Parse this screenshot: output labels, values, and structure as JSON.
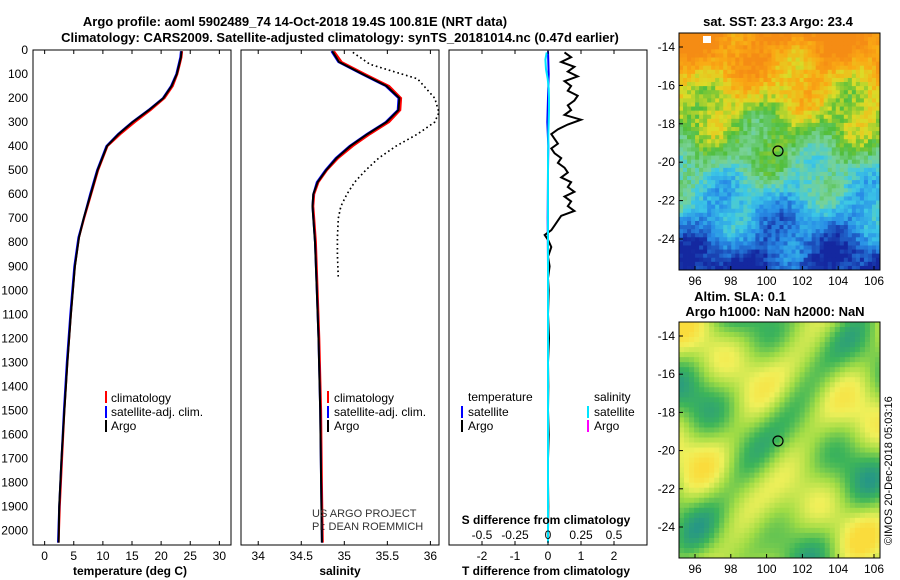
{
  "header": {
    "line1": "Argo profile: aoml 5902489_74 14-Oct-2018 19.4S 100.81E (NRT data)",
    "line2": "Climatology: CARS2009. Satellite-adjusted climatology: synTS_20181014.nc (0.47d earlier)"
  },
  "colors": {
    "climatology": "#ff0000",
    "satellite": "#0000ff",
    "argo": "#000000",
    "satellite_s": "#00e5ff",
    "argo_s": "#ff00ff"
  },
  "depth_axis": {
    "ticks": [
      0,
      100,
      200,
      300,
      400,
      500,
      600,
      700,
      800,
      900,
      1000,
      1100,
      1200,
      1300,
      1400,
      1500,
      1600,
      1700,
      1800,
      1900,
      2000
    ],
    "range": [
      0,
      2060
    ]
  },
  "chart_data": [
    {
      "type": "line",
      "name": "temperature",
      "xlabel": "temperature (deg C)",
      "xlim": [
        -2,
        32
      ],
      "xticks": [
        0,
        5,
        10,
        15,
        20,
        25,
        30
      ],
      "legend": [
        "climatology",
        "satellite-adj. clim.",
        "Argo"
      ],
      "series": [
        {
          "name": "climatology",
          "depth": [
            5,
            30,
            60,
            100,
            150,
            200,
            250,
            300,
            350,
            400,
            500,
            600,
            700,
            780,
            900,
            1100,
            1300,
            1500,
            1700,
            1900,
            2050
          ],
          "values": [
            23.6,
            23.5,
            23.2,
            22.8,
            22.0,
            20.6,
            18.2,
            15.5,
            13.0,
            10.8,
            9.2,
            8.0,
            6.8,
            5.9,
            5.2,
            4.5,
            3.9,
            3.4,
            3.0,
            2.6,
            2.4
          ]
        },
        {
          "name": "satellite-adj. clim.",
          "depth": [
            5,
            30,
            60,
            100,
            150,
            200,
            250,
            300,
            350,
            400,
            500,
            600,
            700,
            780,
            900,
            1100,
            1300,
            1500,
            1700,
            1900,
            2050
          ],
          "values": [
            23.4,
            23.3,
            23.0,
            22.6,
            21.7,
            20.3,
            17.8,
            15.0,
            12.6,
            10.6,
            9.0,
            7.8,
            6.7,
            5.8,
            5.1,
            4.4,
            3.8,
            3.3,
            2.9,
            2.5,
            2.3
          ]
        },
        {
          "name": "Argo",
          "depth": [
            5,
            30,
            60,
            100,
            150,
            200,
            250,
            300,
            350,
            400,
            500,
            600,
            700,
            780,
            900,
            1100,
            1300,
            1500,
            1700,
            1900,
            2050
          ],
          "values": [
            23.5,
            23.4,
            23.1,
            22.7,
            21.8,
            20.4,
            17.9,
            15.1,
            12.7,
            10.7,
            9.1,
            7.9,
            6.7,
            5.9,
            5.2,
            4.5,
            3.9,
            3.4,
            2.9,
            2.5,
            2.4
          ]
        }
      ]
    },
    {
      "type": "line",
      "name": "salinity",
      "xlabel": "salinity",
      "xlim": [
        33.8,
        36.1
      ],
      "xticks": [
        34,
        34.5,
        35,
        35.5,
        36
      ],
      "xticklabels": [
        "34",
        "34.5",
        "35",
        "35.5",
        "36"
      ],
      "legend": [
        "climatology",
        "satellite-adj. clim.",
        "Argo"
      ],
      "annotation": [
        "US ARGO PROJECT",
        "PI: DEAN ROEMMICH"
      ],
      "series": [
        {
          "name": "climatology",
          "depth": [
            5,
            50,
            100,
            150,
            200,
            250,
            300,
            350,
            400,
            450,
            500,
            550,
            600,
            650,
            700,
            800,
            1000,
            1200,
            1500,
            1800,
            2050
          ],
          "values": [
            34.88,
            34.97,
            35.24,
            35.52,
            35.66,
            35.65,
            35.52,
            35.3,
            35.1,
            34.93,
            34.8,
            34.7,
            34.65,
            34.64,
            34.65,
            34.67,
            34.69,
            34.71,
            34.73,
            34.74,
            34.75
          ]
        },
        {
          "name": "satellite-adj. clim.",
          "depth": [
            5,
            50,
            100,
            150,
            200,
            250,
            300,
            350,
            400,
            450,
            500,
            550,
            600,
            650,
            700,
            800,
            1000,
            1200,
            1500,
            1800,
            2050
          ],
          "values": [
            34.85,
            34.93,
            35.2,
            35.48,
            35.63,
            35.62,
            35.48,
            35.26,
            35.06,
            34.9,
            34.78,
            34.68,
            34.64,
            34.63,
            34.64,
            34.66,
            34.68,
            34.7,
            34.72,
            34.73,
            34.74
          ]
        },
        {
          "name": "Argo",
          "depth": [
            5,
            50,
            100,
            150,
            200,
            250,
            300,
            350,
            400,
            450,
            500,
            550,
            600,
            650,
            700,
            800,
            1000,
            1200,
            1500,
            1800,
            2050
          ],
          "values": [
            34.86,
            34.94,
            35.21,
            35.49,
            35.64,
            35.63,
            35.49,
            35.27,
            35.07,
            34.91,
            34.79,
            34.69,
            34.64,
            34.63,
            34.64,
            34.66,
            34.68,
            34.7,
            34.72,
            34.73,
            34.74
          ]
        },
        {
          "name": "clim. std",
          "style": "dotted",
          "depth": [
            10,
            60,
            120,
            200,
            260,
            300,
            350,
            400,
            450,
            500,
            550,
            600,
            650,
            700,
            780,
            850,
            950
          ],
          "values": [
            35.1,
            35.3,
            35.85,
            36.05,
            36.1,
            36.05,
            35.85,
            35.6,
            35.4,
            35.25,
            35.12,
            35.03,
            34.96,
            34.93,
            34.92,
            34.92,
            34.93
          ]
        },
        {
          "name": "clim. std",
          "style": "dotted",
          "depth": [
            10,
            60,
            120,
            200,
            260,
            300,
            350,
            400,
            450,
            500,
            550,
            600,
            650,
            700,
            780,
            850,
            950
          ],
          "values": [
            35.1,
            35.3,
            35.85,
            36.05,
            36.1,
            36.05,
            35.85,
            35.6,
            35.4,
            35.25,
            35.12,
            35.03,
            34.96,
            34.93,
            34.92,
            34.92,
            34.93
          ]
        }
      ]
    },
    {
      "type": "line",
      "name": "differences",
      "xlabel": "T difference from climatology",
      "xlim": [
        -3,
        3
      ],
      "xticks": [
        -2,
        -1,
        0,
        1,
        2
      ],
      "top_label": "S difference from climatology",
      "top_ticks": [
        "-0.5",
        "-0.25",
        "0",
        "0.25",
        "0.5"
      ],
      "legend_left": [
        "temperature",
        "satellite",
        "Argo"
      ],
      "legend_right": [
        "salinity",
        "satellite",
        "Argo"
      ],
      "series": [
        {
          "name": "T satellite",
          "depth": [
            5,
            100,
            200,
            300,
            400,
            500,
            700,
            900,
            1200,
            1500,
            1800,
            2050
          ],
          "values": [
            0.0,
            0.02,
            0.0,
            -0.02,
            0.01,
            0.0,
            -0.01,
            0.0,
            0.0,
            0.0,
            0.0,
            0.0
          ]
        },
        {
          "name": "T Argo",
          "depth": [
            10,
            30,
            50,
            70,
            90,
            110,
            130,
            150,
            170,
            190,
            210,
            230,
            250,
            270,
            290,
            310,
            330,
            350,
            370,
            390,
            410,
            430,
            450,
            470,
            490,
            510,
            530,
            550,
            570,
            590,
            610,
            630,
            650,
            670,
            690,
            710,
            730,
            750,
            770,
            790,
            820,
            860,
            900,
            950,
            1000,
            1100,
            1200,
            1300,
            1400,
            1500,
            1600,
            1700,
            1800,
            1900,
            2000,
            2050
          ],
          "values": [
            0.5,
            0.7,
            0.4,
            0.8,
            0.6,
            0.9,
            0.5,
            0.7,
            0.6,
            0.9,
            0.8,
            0.6,
            0.7,
            0.5,
            1.0,
            0.6,
            0.3,
            0.1,
            0.2,
            0.3,
            0.1,
            0.2,
            0.4,
            0.3,
            0.5,
            0.6,
            0.4,
            0.7,
            0.6,
            0.8,
            0.5,
            0.7,
            0.6,
            0.8,
            0.4,
            0.3,
            0.2,
            0.1,
            -0.1,
            0.0,
            0.1,
            0.0,
            0.05,
            0.0,
            0.02,
            0.0,
            0.03,
            0.0,
            0.01,
            0.0,
            0.02,
            0.0,
            0.0,
            0.01,
            0.0,
            0.0
          ]
        },
        {
          "name": "S satellite",
          "depth": [
            10,
            40,
            80,
            120,
            160,
            200,
            250,
            300,
            350,
            400,
            450,
            500,
            600,
            700,
            800,
            1000,
            1300,
            1600,
            1900,
            2050
          ],
          "values": [
            -0.04,
            -0.08,
            -0.06,
            -0.01,
            0.02,
            0.03,
            0.03,
            0.02,
            0.01,
            0.01,
            0.0,
            0.0,
            0.0,
            0.0,
            0.0,
            0.0,
            0.0,
            0.0,
            0.0,
            0.0
          ]
        }
      ]
    }
  ],
  "maps": [
    {
      "name": "sst_map",
      "title": "sat. SST: 23.3 Argo: 23.4",
      "xticks": [
        "96",
        "98",
        "100",
        "102",
        "104",
        "106"
      ],
      "yticks": [
        "-14",
        "-16",
        "-18",
        "-20",
        "-22",
        "-24"
      ],
      "marker": {
        "lon": 100.81,
        "lat": -19.4
      }
    },
    {
      "name": "sla_map",
      "title_line1": "Altim. SLA: 0.1",
      "title_line2": "Argo h1000: NaN h2000: NaN",
      "xticks": [
        "96",
        "98",
        "100",
        "102",
        "104",
        "106"
      ],
      "yticks": [
        "-14",
        "-16",
        "-18",
        "-20",
        "-22",
        "-24"
      ],
      "marker": {
        "lon": 100.81,
        "lat": -19.4
      }
    }
  ],
  "footer": {
    "credit": "©IMOS 20-Dec-2018 05:03:16"
  }
}
